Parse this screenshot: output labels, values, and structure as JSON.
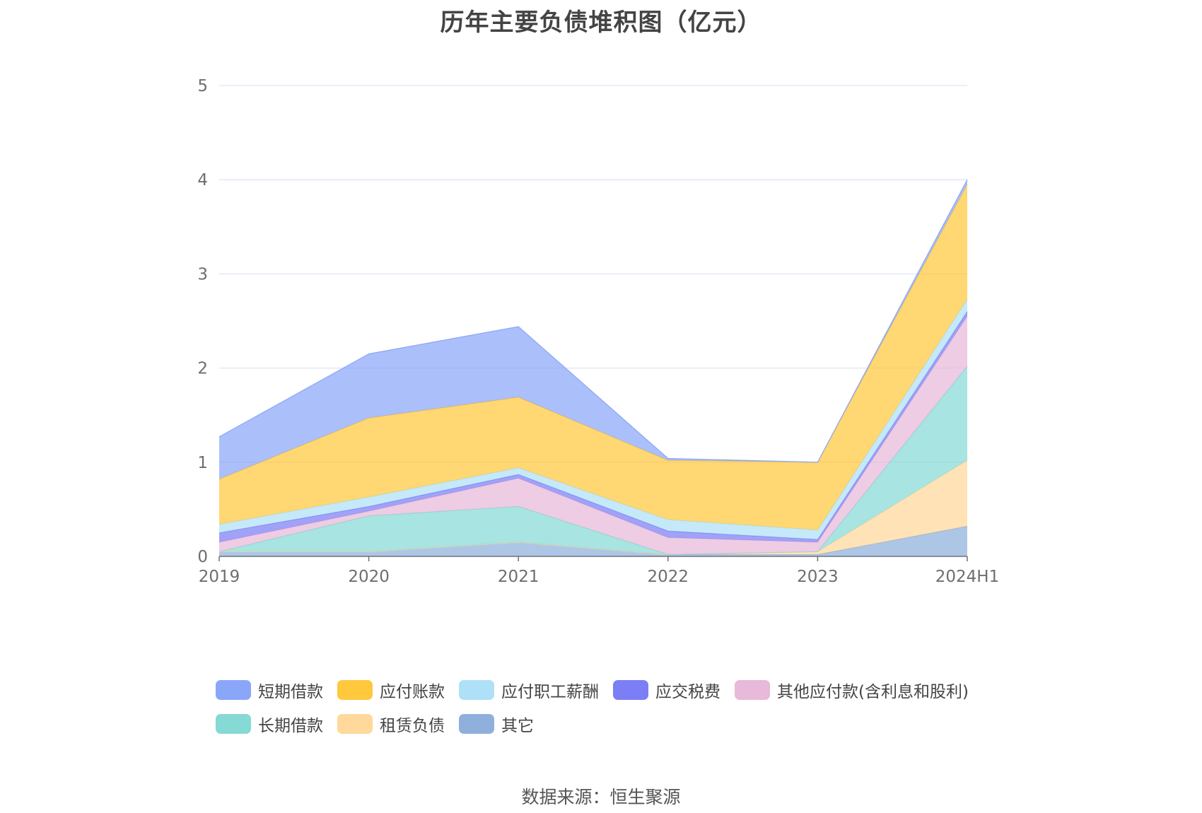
{
  "chart_data": {
    "type": "area",
    "stacked": true,
    "title": "历年主要负债堆积图（亿元）",
    "xlabel": "",
    "ylabel": "",
    "categories": [
      "2019",
      "2020",
      "2021",
      "2022",
      "2023",
      "2024H1"
    ],
    "ylim": [
      0,
      5
    ],
    "yticks": [
      "0",
      "1",
      "2",
      "3",
      "4",
      "5"
    ],
    "grid": true,
    "legend_position": "bottom",
    "series": [
      {
        "name": "其它",
        "color": "#8fb0dc",
        "values": [
          0.05,
          0.05,
          0.15,
          0.02,
          0.02,
          0.32
        ]
      },
      {
        "name": "租赁负债",
        "color": "#ffd89b",
        "values": [
          0.0,
          0.0,
          0.0,
          0.0,
          0.03,
          0.7
        ]
      },
      {
        "name": "长期借款",
        "color": "#86d9d5",
        "values": [
          0.0,
          0.38,
          0.38,
          0.0,
          0.0,
          1.0
        ]
      },
      {
        "name": "其他应付款(含利息和股利)",
        "color": "#e8b9d8",
        "values": [
          0.1,
          0.05,
          0.3,
          0.18,
          0.1,
          0.53
        ]
      },
      {
        "name": "应交税费",
        "color": "#7b7ef5",
        "values": [
          0.1,
          0.05,
          0.04,
          0.07,
          0.03,
          0.05
        ]
      },
      {
        "name": "应付职工薪酬",
        "color": "#aee1f7",
        "values": [
          0.09,
          0.1,
          0.07,
          0.12,
          0.1,
          0.13
        ]
      },
      {
        "name": "应付账款",
        "color": "#ffc83d",
        "values": [
          0.48,
          0.84,
          0.75,
          0.63,
          0.72,
          1.22
        ]
      },
      {
        "name": "短期借款",
        "color": "#8aa6f8",
        "values": [
          0.45,
          0.68,
          0.75,
          0.02,
          0.0,
          0.05
        ]
      }
    ],
    "legend_order": [
      "短期借款",
      "应付账款",
      "应付职工薪酬",
      "应交税费",
      "其他应付款(含利息和股利)",
      "长期借款",
      "租赁负债",
      "其它"
    ]
  },
  "legend": {
    "row1": [
      {
        "label": "短期借款",
        "color": "#8aa6f8"
      },
      {
        "label": "应付账款",
        "color": "#ffc83d"
      },
      {
        "label": "应付职工薪酬",
        "color": "#aee1f7"
      },
      {
        "label": "应交税费",
        "color": "#7b7ef5"
      },
      {
        "label": "其他应付款(含利息和股利)",
        "color": "#e8b9d8"
      }
    ],
    "row2": [
      {
        "label": "长期借款",
        "color": "#86d9d5"
      },
      {
        "label": "租赁负债",
        "color": "#ffd89b"
      },
      {
        "label": "其它",
        "color": "#8fb0dc"
      }
    ]
  },
  "source": "数据来源：恒生聚源"
}
